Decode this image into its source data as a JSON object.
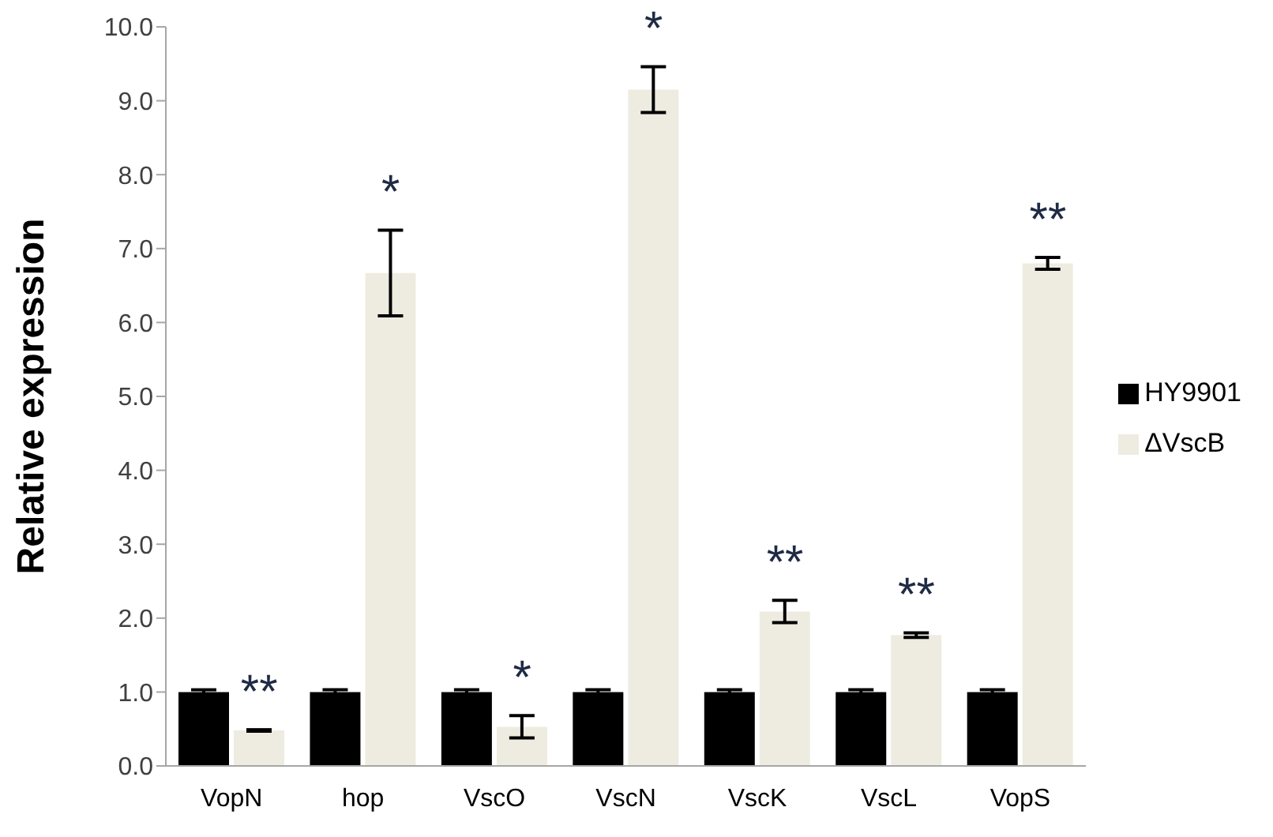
{
  "chart_data": {
    "type": "bar",
    "ylabel": "Relative expression",
    "categories": [
      "VopN",
      "hop",
      "VscO",
      "VscN",
      "VscK",
      "VscL",
      "VopS"
    ],
    "series": [
      {
        "name": "HY9901",
        "color": "#000000",
        "values": [
          1.0,
          1.0,
          1.0,
          1.0,
          1.0,
          1.0,
          1.0
        ],
        "errors": [
          0.03,
          0.03,
          0.03,
          0.03,
          0.03,
          0.03,
          0.03
        ]
      },
      {
        "name": "ΔVscB",
        "color": "#eeece1",
        "values": [
          0.48,
          6.67,
          0.53,
          9.15,
          2.09,
          1.77,
          6.8
        ],
        "errors": [
          0.01,
          0.58,
          0.15,
          0.31,
          0.15,
          0.03,
          0.08
        ]
      }
    ],
    "ylim": [
      0,
      10
    ],
    "yticks": [
      {
        "value": 0,
        "label": "0.0"
      },
      {
        "value": 1,
        "label": "1.0"
      },
      {
        "value": 2,
        "label": "2.0"
      },
      {
        "value": 3,
        "label": "3.0"
      },
      {
        "value": 4,
        "label": "4.0"
      },
      {
        "value": 5,
        "label": "5.0"
      },
      {
        "value": 6,
        "label": "6.0"
      },
      {
        "value": 7,
        "label": "7.0"
      },
      {
        "value": 8,
        "label": "8.0"
      },
      {
        "value": 9,
        "label": "9.0"
      },
      {
        "value": 10,
        "label": "10.0"
      }
    ],
    "annotations": [
      {
        "text": "**",
        "x": "VopN",
        "y": 0.48
      },
      {
        "text": "*",
        "x": "hop",
        "y": 6.67
      },
      {
        "text": "*",
        "x": "VscO",
        "y": 0.53
      },
      {
        "text": "*",
        "x": "VscN",
        "y": 9.15
      },
      {
        "text": "**",
        "x": "VscK",
        "y": 2.09
      },
      {
        "text": "**",
        "x": "VscL",
        "y": 1.77
      },
      {
        "text": "**",
        "x": "VopS",
        "y": 6.8
      }
    ],
    "grid": false,
    "legend": "right"
  }
}
